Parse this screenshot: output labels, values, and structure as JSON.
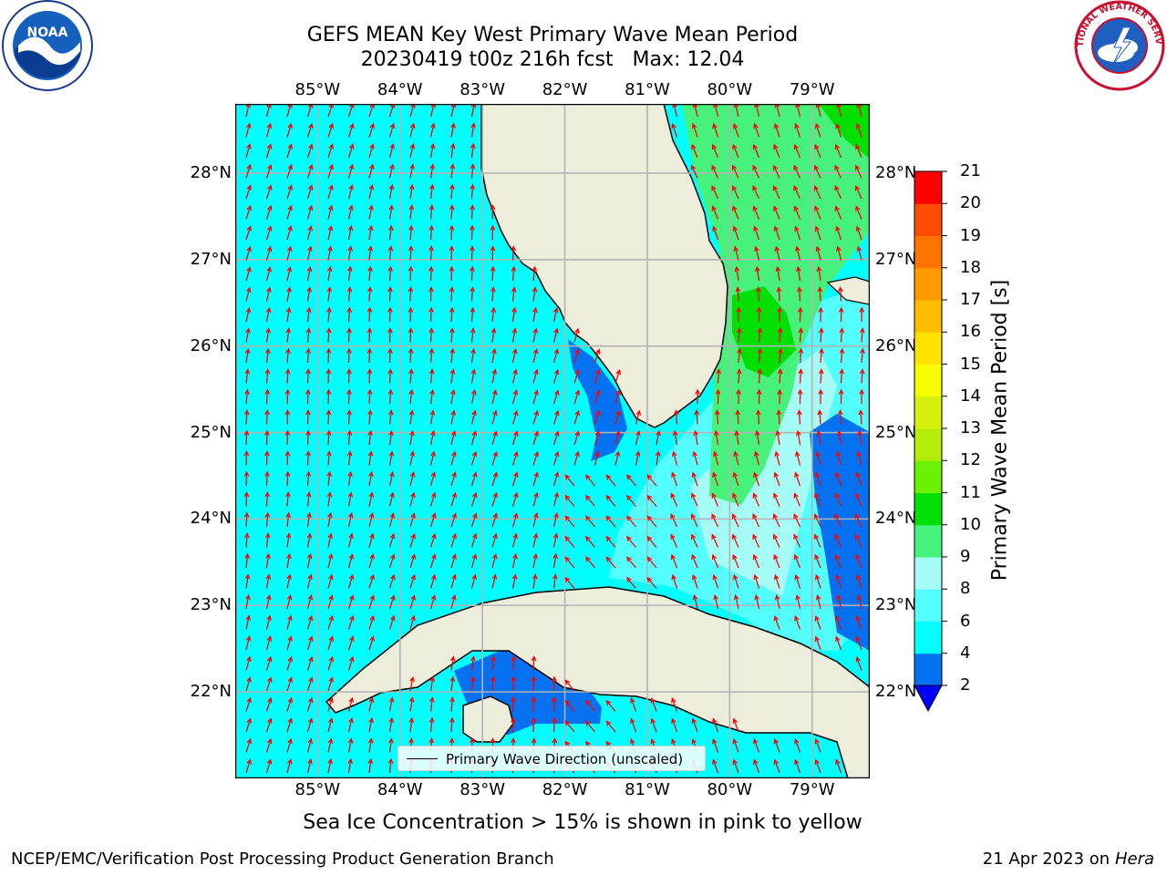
{
  "title": {
    "line1": "GEFS MEAN Key West Primary Wave Mean Period",
    "line2": "20230419 t00z 216h fcst   Max: 12.04"
  },
  "logos": {
    "left": "NOAA",
    "right": "NATIONAL WEATHER SERVICE"
  },
  "axes": {
    "lon_labels": [
      "85°W",
      "84°W",
      "83°W",
      "82°W",
      "81°W",
      "80°W",
      "79°W"
    ],
    "lat_labels": [
      "28°N",
      "27°N",
      "26°N",
      "25°N",
      "24°N",
      "23°N",
      "22°N"
    ],
    "lon_values": [
      -85,
      -84,
      -83,
      -82,
      -81,
      -80,
      -79
    ],
    "lat_values": [
      28,
      27,
      26,
      25,
      24,
      23,
      22
    ]
  },
  "map": {
    "extent": {
      "lon_min": -86.0,
      "lon_max": -78.3,
      "lat_min": 21.0,
      "lat_max": 28.8
    },
    "land_color": "#ededdc",
    "grid_color": "#b3b3b3",
    "vector_color": "#ff0000",
    "legend_label": "Primary Wave Direction (unscaled)"
  },
  "colorbar": {
    "label": "Primary Wave Mean Period [s]",
    "levels": [
      2,
      4,
      6,
      8,
      9,
      10,
      11,
      12,
      13,
      14,
      15,
      16,
      17,
      18,
      19,
      20,
      21
    ],
    "colors": [
      "#0472f0",
      "#01ffff",
      "#52fefe",
      "#a5fcf6",
      "#47f27c",
      "#00e005",
      "#6bf106",
      "#b4ec0c",
      "#d5f00c",
      "#f5ff00",
      "#ffe200",
      "#ffbd00",
      "#ff9a00",
      "#ff7400",
      "#ff4b00",
      "#ff0000"
    ],
    "under_color": "#0000ff",
    "tick_labels": [
      "2",
      "4",
      "6",
      "8",
      "9",
      "10",
      "11",
      "12",
      "13",
      "14",
      "15",
      "16",
      "17",
      "18",
      "19",
      "20",
      "21"
    ]
  },
  "subtitle": "Sea Ice Concentration > 15% is shown in pink to yellow",
  "footer": {
    "left": "NCEP/EMC/Verification Post Processing Product Generation Branch",
    "date": "21 Apr 2023 on",
    "host": "Hera"
  }
}
